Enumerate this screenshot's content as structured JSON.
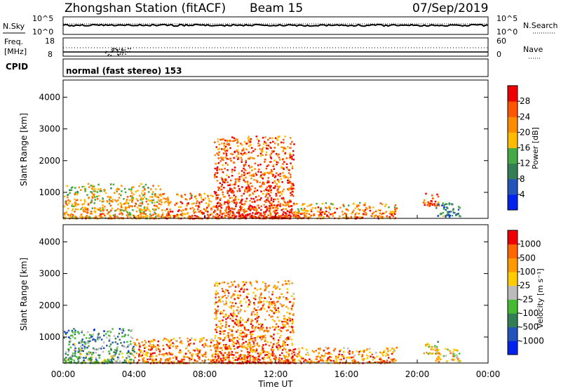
{
  "header": {
    "station": "Zhongshan Station (fitACF)",
    "beam": "Beam 15",
    "date": "07/Sep/2019"
  },
  "top_panel": {
    "left_label": "N.Sky",
    "right_label": "N.Search",
    "left_ticks": [
      "10^5",
      "10^0"
    ],
    "right_ticks": [
      "10^5",
      "10^0"
    ]
  },
  "freq_panel": {
    "label_line1": "Freq.",
    "label_line2": "[MHz]",
    "right_label": "Nave",
    "left_ticks": [
      "18",
      "8"
    ],
    "right_ticks": [
      "60",
      "0"
    ]
  },
  "cpid": {
    "label": "CPID",
    "text": "normal (fast stereo) 153"
  },
  "colors": {
    "power_scale": [
      "#0022ee",
      "#2255bb",
      "#337f55",
      "#44aa44",
      "#ffbb00",
      "#ff8c00",
      "#ff5500",
      "#ee0000"
    ],
    "velocity_scale": [
      "#0022ee",
      "#2255bb",
      "#337f55",
      "#44bb33",
      "#bbbbbb",
      "#ffcc00",
      "#ff9900",
      "#ff6600",
      "#ee0000"
    ]
  },
  "chart_data": [
    {
      "type": "heatmap",
      "panel": "power",
      "ylabel": "Slant Range [km]",
      "yticks": [
        "4000",
        "3000",
        "2000",
        "1000"
      ],
      "ylim": [
        180,
        4540
      ],
      "xlim": [
        0,
        24
      ],
      "colorbar_label": "Power [dB]",
      "colorbar_ticks": [
        "28",
        "24",
        "20",
        "16",
        "12",
        "8",
        "4"
      ],
      "regions_note": "",
      "regions": [
        {
          "t0": 0.0,
          "t1": 5.5,
          "r0": 200,
          "r1": 1300,
          "level": 0.55
        },
        {
          "t0": 5.5,
          "t1": 8.5,
          "r0": 200,
          "r1": 1000,
          "level": 0.7
        },
        {
          "t0": 8.5,
          "t1": 13.0,
          "r0": 200,
          "r1": 2800,
          "level": 0.75
        },
        {
          "t0": 13.0,
          "t1": 18.8,
          "r0": 200,
          "r1": 700,
          "level": 0.65
        },
        {
          "t0": 20.3,
          "t1": 21.2,
          "r0": 600,
          "r1": 1000,
          "level": 0.75
        },
        {
          "t0": 21.0,
          "t1": 22.4,
          "r0": 250,
          "r1": 700,
          "level": 0.2
        }
      ]
    },
    {
      "type": "heatmap",
      "panel": "velocity",
      "ylabel": "Slant Range [km]",
      "yticks": [
        "4000",
        "3000",
        "2000",
        "1000"
      ],
      "ylim": [
        180,
        4540
      ],
      "xlim": [
        0,
        24
      ],
      "colorbar_label": "Velocity [m s⁻¹]",
      "colorbar_ticks": [
        "1000",
        "500",
        "100",
        "25",
        "-25",
        "-100",
        "-500",
        "-1000"
      ],
      "xlabel": "Time UT",
      "xticks": [
        "00:00",
        "04:00",
        "08:00",
        "12:00",
        "16:00",
        "20:00",
        "00:00"
      ],
      "regions": [
        {
          "t0": 0.0,
          "t1": 4.0,
          "r0": 200,
          "r1": 1300,
          "level": 0.3
        },
        {
          "t0": 4.0,
          "t1": 8.5,
          "r0": 200,
          "r1": 1000,
          "level": 0.7
        },
        {
          "t0": 8.5,
          "t1": 13.0,
          "r0": 200,
          "r1": 2800,
          "level": 0.72
        },
        {
          "t0": 13.0,
          "t1": 18.8,
          "r0": 200,
          "r1": 700,
          "level": 0.7
        },
        {
          "t0": 20.3,
          "t1": 21.2,
          "r0": 500,
          "r1": 900,
          "level": 0.5
        },
        {
          "t0": 21.0,
          "t1": 22.4,
          "r0": 250,
          "r1": 700,
          "level": 0.55
        }
      ]
    }
  ]
}
